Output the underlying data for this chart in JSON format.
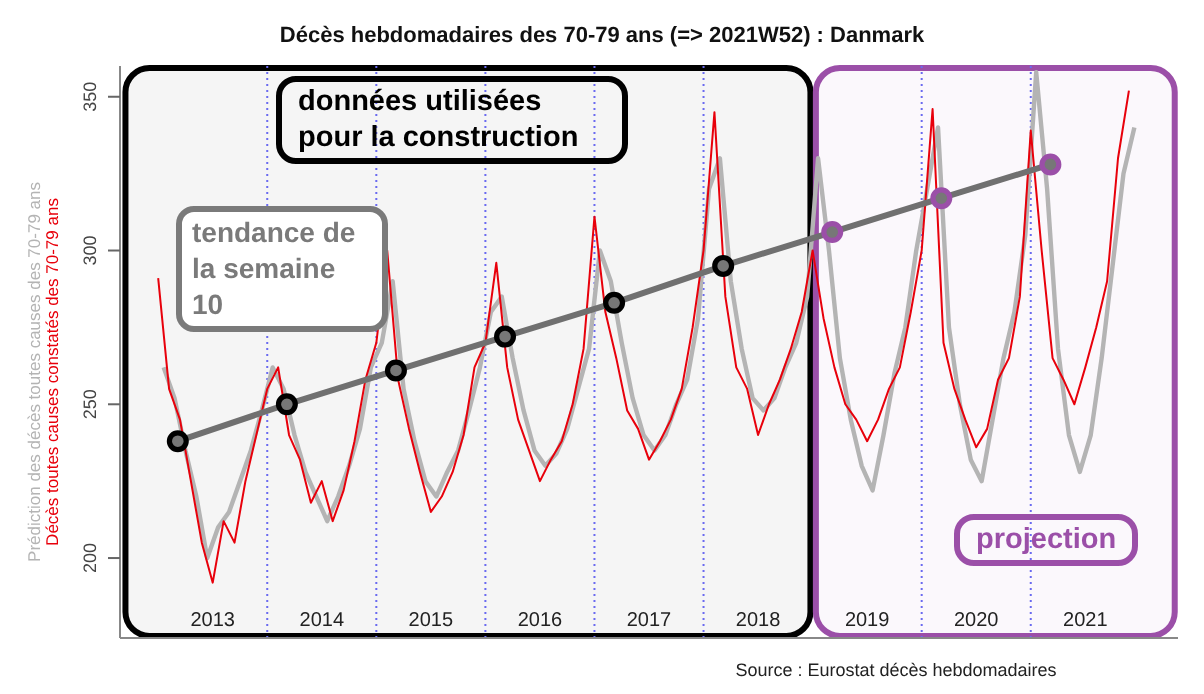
{
  "chart_data": {
    "type": "line",
    "title": "Décès hebdomadaires des 70-79 ans (=> 2021W52) : Danmark",
    "xlim": [
      2012.65,
      2022.35
    ],
    "xticks": [
      {
        "value": 2013.5,
        "label": "2013"
      },
      {
        "value": 2014.5,
        "label": "2014"
      },
      {
        "value": 2015.5,
        "label": "2015"
      },
      {
        "value": 2016.5,
        "label": "2016"
      },
      {
        "value": 2017.5,
        "label": "2017"
      },
      {
        "value": 2018.5,
        "label": "2018"
      },
      {
        "value": 2019.5,
        "label": "2019"
      },
      {
        "value": 2020.5,
        "label": "2020"
      },
      {
        "value": 2021.5,
        "label": "2021"
      }
    ],
    "ylim": [
      174,
      360
    ],
    "yticks": [
      200,
      250,
      300,
      350
    ],
    "legend": "left",
    "series": [
      {
        "name": "Prédiction des décès toutes causes des 70-79 ans",
        "color": "#b4b4b4",
        "marker": "none",
        "x": [
          2013.05,
          2013.15,
          2013.25,
          2013.35,
          2013.45,
          2013.55,
          2013.65,
          2013.75,
          2013.85,
          2013.95,
          2014.05,
          2014.15,
          2014.25,
          2014.35,
          2014.45,
          2014.55,
          2014.65,
          2014.75,
          2014.85,
          2014.95,
          2015.05,
          2015.15,
          2015.25,
          2015.35,
          2015.45,
          2015.55,
          2015.65,
          2015.75,
          2015.85,
          2015.95,
          2016.05,
          2016.15,
          2016.25,
          2016.35,
          2016.45,
          2016.55,
          2016.65,
          2016.75,
          2016.85,
          2016.95,
          2017.05,
          2017.15,
          2017.25,
          2017.35,
          2017.45,
          2017.55,
          2017.65,
          2017.75,
          2017.85,
          2017.95,
          2018.05,
          2018.15,
          2018.25,
          2018.35,
          2018.45,
          2018.55,
          2018.65,
          2018.75,
          2018.85,
          2018.95,
          2019.05,
          2019.15,
          2019.25,
          2019.35,
          2019.45,
          2019.55,
          2019.65,
          2019.75,
          2019.85,
          2019.95,
          2020.05,
          2020.15,
          2020.25,
          2020.35,
          2020.45,
          2020.55,
          2020.65,
          2020.75,
          2020.85,
          2020.95,
          2021.05,
          2021.15,
          2021.25,
          2021.35,
          2021.45,
          2021.55,
          2021.65,
          2021.75,
          2021.85,
          2021.95
        ],
        "values": [
          262,
          252,
          235,
          220,
          200,
          210,
          215,
          225,
          235,
          248,
          262,
          255,
          240,
          228,
          220,
          212,
          220,
          230,
          242,
          262,
          270,
          290,
          255,
          238,
          225,
          220,
          228,
          235,
          248,
          262,
          280,
          285,
          265,
          248,
          235,
          230,
          234,
          242,
          255,
          268,
          300,
          290,
          270,
          252,
          240,
          235,
          240,
          250,
          258,
          278,
          320,
          330,
          290,
          268,
          252,
          248,
          252,
          262,
          270,
          285,
          330,
          300,
          265,
          245,
          230,
          222,
          240,
          260,
          275,
          300,
          320,
          340,
          275,
          250,
          232,
          225,
          245,
          265,
          280,
          305,
          358,
          320,
          268,
          240,
          228,
          240,
          265,
          295,
          325,
          340
        ]
      },
      {
        "name": "Décès toutes causes constatés des 70-79 ans",
        "color": "#e8000b",
        "marker": "none",
        "x": [
          2013.0,
          2013.1,
          2013.2,
          2013.3,
          2013.4,
          2013.5,
          2013.6,
          2013.7,
          2013.8,
          2013.9,
          2014.0,
          2014.1,
          2014.2,
          2014.3,
          2014.4,
          2014.5,
          2014.6,
          2014.7,
          2014.8,
          2014.9,
          2015.0,
          2015.1,
          2015.2,
          2015.3,
          2015.4,
          2015.5,
          2015.6,
          2015.7,
          2015.8,
          2015.9,
          2016.0,
          2016.1,
          2016.2,
          2016.3,
          2016.4,
          2016.5,
          2016.6,
          2016.7,
          2016.8,
          2016.9,
          2017.0,
          2017.1,
          2017.2,
          2017.3,
          2017.4,
          2017.5,
          2017.6,
          2017.7,
          2017.8,
          2017.9,
          2018.0,
          2018.1,
          2018.2,
          2018.3,
          2018.4,
          2018.5,
          2018.6,
          2018.7,
          2018.8,
          2018.9,
          2019.0,
          2019.1,
          2019.2,
          2019.3,
          2019.4,
          2019.5,
          2019.6,
          2019.7,
          2019.8,
          2019.9,
          2020.0,
          2020.1,
          2020.2,
          2020.3,
          2020.4,
          2020.5,
          2020.6,
          2020.7,
          2020.8,
          2020.9,
          2021.0,
          2021.1,
          2021.2,
          2021.3,
          2021.4,
          2021.5,
          2021.6,
          2021.7,
          2021.8,
          2021.9
        ],
        "values": [
          291,
          255,
          245,
          225,
          205,
          192,
          212,
          205,
          225,
          240,
          255,
          262,
          240,
          232,
          218,
          225,
          212,
          222,
          238,
          258,
          270,
          300,
          258,
          242,
          228,
          215,
          220,
          228,
          240,
          262,
          270,
          296,
          262,
          245,
          235,
          225,
          232,
          238,
          250,
          268,
          311,
          280,
          265,
          248,
          242,
          232,
          238,
          245,
          255,
          275,
          300,
          345,
          285,
          262,
          255,
          240,
          250,
          258,
          268,
          280,
          300,
          278,
          262,
          250,
          245,
          238,
          245,
          255,
          262,
          280,
          300,
          346,
          270,
          255,
          245,
          236,
          242,
          258,
          265,
          285,
          339,
          300,
          265,
          258,
          250,
          262,
          275,
          290,
          330,
          352
        ]
      },
      {
        "color": "#707070",
        "marker": "circle",
        "x": [
          2013.18,
          2014.18,
          2015.18,
          2016.18,
          2017.18,
          2018.18,
          2019.18,
          2020.18,
          2021.18
        ],
        "values": [
          238,
          250,
          261,
          272,
          283,
          295,
          306,
          317,
          328
        ],
        "colors": [
          "#000000",
          "#000000",
          "#000000",
          "#000000",
          "#000000",
          "#000000",
          "#9b4fa8",
          "#9b4fa8",
          "#9b4fa8"
        ]
      }
    ],
    "ref_lines": [
      {
        "axis": "x",
        "value": 2014,
        "color": "#6a6af0",
        "line_style": "dotted"
      },
      {
        "axis": "x",
        "value": 2015,
        "color": "#6a6af0",
        "line_style": "dotted"
      },
      {
        "axis": "x",
        "value": 2016,
        "color": "#6a6af0",
        "line_style": "dotted"
      },
      {
        "axis": "x",
        "value": 2017,
        "color": "#6a6af0",
        "line_style": "dotted"
      },
      {
        "axis": "x",
        "value": 2018,
        "color": "#6a6af0",
        "line_style": "dotted"
      },
      {
        "axis": "x",
        "value": 2020,
        "color": "#6a6af0",
        "line_style": "dotted"
      },
      {
        "axis": "x",
        "value": 2021,
        "color": "#6a6af0",
        "line_style": "dotted"
      }
    ],
    "bands": [
      {
        "axis": "x",
        "from": 2012.7,
        "to": 2018.98,
        "label": "données utilisées pour la construction",
        "color": "#000000"
      },
      {
        "axis": "x",
        "from": 2019.03,
        "to": 2022.32,
        "label": "projection",
        "color": "#9b4fa8"
      }
    ],
    "annotations": [
      "tendance de la semaine 10",
      "Source : Eurostat décès hebdomadaires"
    ]
  }
}
